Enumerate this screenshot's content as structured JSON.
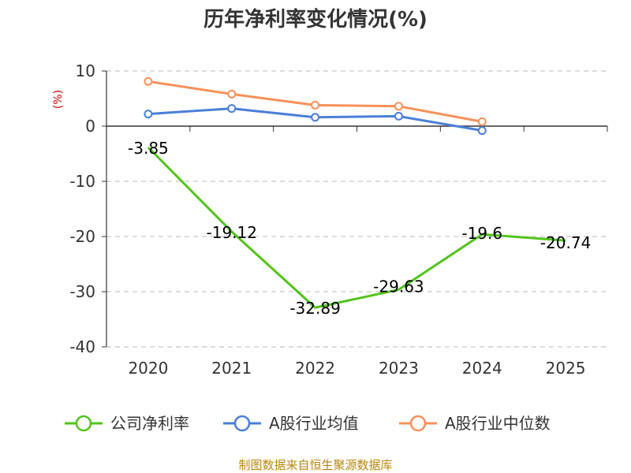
{
  "chart_data": {
    "type": "line",
    "title": "历年净利率变化情况(%)",
    "ylabel": "(%)",
    "xlabel": "",
    "ylim": [
      -40,
      10
    ],
    "yticks": [
      10,
      0,
      -10,
      -20,
      -30,
      -40
    ],
    "categories": [
      "2020",
      "2021",
      "2022",
      "2023",
      "2024",
      "2025"
    ],
    "grid": true,
    "legend_position": "bottom",
    "series": [
      {
        "name": "公司净利率",
        "color": "#52c41a",
        "values": [
          -3.85,
          -19.12,
          -32.89,
          -29.63,
          -19.6,
          -20.74
        ],
        "labels": [
          "-3.85",
          "-19.12",
          "-32.89",
          "-29.63",
          "-19.6",
          "-20.74"
        ]
      },
      {
        "name": "A股行业均值",
        "color": "#4a7fd6",
        "values": [
          2.2,
          3.2,
          1.6,
          1.8,
          -0.8,
          null
        ]
      },
      {
        "name": "A股行业中位数",
        "color": "#f79159",
        "values": [
          8.1,
          5.8,
          3.8,
          3.6,
          0.8,
          null
        ]
      }
    ]
  },
  "footer": "制图数据来自恒生聚源数据库"
}
